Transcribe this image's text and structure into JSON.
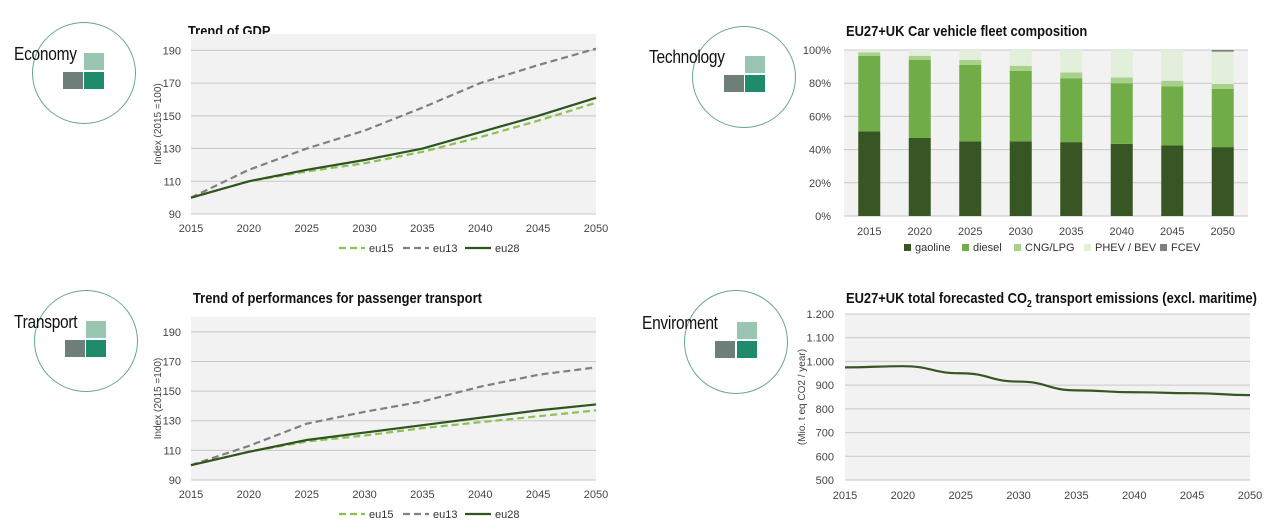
{
  "sections": {
    "economy": "Economy",
    "technology": "Technology",
    "transport": "Transport",
    "environment": "Enviroment"
  },
  "icons": [
    "economy-icon",
    "technology-icon",
    "transport-icon",
    "environment-icon"
  ],
  "colors": {
    "eu15": "#8cc152",
    "eu13": "#808080",
    "eu28": "#2e5420",
    "gaoline": "#375623",
    "diesel": "#70ad47",
    "cng_lpg": "#a9d18e",
    "phev_bev": "#e2efda",
    "fcev": "#7f7f7f",
    "co2_line": "#375623"
  },
  "chart_data": [
    {
      "id": "gdp",
      "type": "line",
      "title": "Trend of GDP",
      "ylabel": "Index (2015 =100)",
      "xlabel": "",
      "x": [
        2015,
        2020,
        2025,
        2030,
        2035,
        2040,
        2045,
        2050
      ],
      "yticks": [
        90,
        110,
        130,
        150,
        170,
        190
      ],
      "ylim": [
        90,
        200
      ],
      "grid": true,
      "legend_position": "bottom",
      "series": [
        {
          "name": "eu15",
          "style": "dashed",
          "values": [
            100,
            110,
            116,
            121,
            128,
            137,
            147,
            158
          ]
        },
        {
          "name": "eu13",
          "style": "dashed",
          "values": [
            100,
            117,
            130,
            141,
            155,
            170,
            181,
            191
          ]
        },
        {
          "name": "eu28",
          "style": "solid",
          "values": [
            100,
            110,
            117,
            123,
            130,
            140,
            150,
            161
          ]
        }
      ]
    },
    {
      "id": "transport",
      "type": "line",
      "title": "Trend of performances for passenger transport",
      "ylabel": "Index (2015 =100)",
      "xlabel": "",
      "x": [
        2015,
        2020,
        2025,
        2030,
        2035,
        2040,
        2045,
        2050
      ],
      "yticks": [
        90,
        110,
        130,
        150,
        170,
        190
      ],
      "ylim": [
        90,
        200
      ],
      "grid": true,
      "legend_position": "bottom",
      "series": [
        {
          "name": "eu15",
          "style": "dashed",
          "values": [
            100,
            109,
            116,
            120,
            125,
            129,
            133,
            137
          ]
        },
        {
          "name": "eu13",
          "style": "dashed",
          "values": [
            100,
            113,
            128,
            136,
            143,
            153,
            161,
            166
          ]
        },
        {
          "name": "eu28",
          "style": "solid",
          "values": [
            100,
            109,
            117,
            122,
            127,
            132,
            137,
            141
          ]
        }
      ]
    },
    {
      "id": "fleet",
      "type": "bar",
      "stacked": true,
      "title": "EU27+UK Car vehicle fleet composition",
      "xlabel": "",
      "ylabel": "",
      "categories": [
        "2015",
        "2020",
        "2025",
        "2030",
        "2035",
        "2040",
        "2045",
        "2050"
      ],
      "yticks": [
        "0%",
        "20%",
        "40%",
        "60%",
        "80%",
        "100%"
      ],
      "ylim": [
        0,
        100
      ],
      "grid": true,
      "legend_position": "bottom",
      "series": [
        {
          "name": "gaoline",
          "values": [
            51,
            47,
            45,
            45,
            44.5,
            43.5,
            42.5,
            41.5
          ]
        },
        {
          "name": "diesel",
          "values": [
            45.5,
            47,
            46,
            42.5,
            38.5,
            36.5,
            35.5,
            35
          ]
        },
        {
          "name": "CNG/LPG",
          "values": [
            2,
            2.5,
            3,
            3,
            3.5,
            3.5,
            3.5,
            3
          ]
        },
        {
          "name": "PHEV / BEV",
          "values": [
            1.5,
            3.5,
            6,
            9.5,
            13.5,
            16.5,
            18.5,
            19.5
          ]
        },
        {
          "name": "FCEV",
          "values": [
            0,
            0,
            0,
            0,
            0,
            0,
            0,
            1
          ]
        }
      ]
    },
    {
      "id": "co2",
      "type": "line",
      "title": "EU27+UK total forecasted CO",
      "title_sub": "2",
      "title_tail": " transport emissions (excl. maritime)",
      "ylabel": "(Mio. t eq CO2 / year)",
      "xlabel": "",
      "x": [
        2015,
        2020,
        2025,
        2030,
        2035,
        2040,
        2045,
        2050
      ],
      "yticks": [
        "500",
        "600",
        "700",
        "800",
        "900",
        "1.000",
        "1.100",
        "1.200"
      ],
      "ylim": [
        500,
        1200
      ],
      "grid": true,
      "series": [
        {
          "name": "",
          "style": "solid",
          "values": [
            975,
            980,
            950,
            915,
            878,
            870,
            866,
            858
          ]
        }
      ]
    }
  ]
}
